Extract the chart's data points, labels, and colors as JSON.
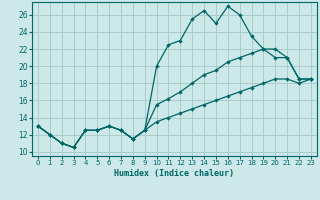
{
  "xlabel": "Humidex (Indice chaleur)",
  "bg_color": "#cce8e8",
  "grid_color": "#aacccc",
  "line_color": "#006666",
  "xlim": [
    -0.5,
    23.5
  ],
  "ylim": [
    9.5,
    27.5
  ],
  "yticks": [
    10,
    12,
    14,
    16,
    18,
    20,
    22,
    24,
    26
  ],
  "xticks": [
    0,
    1,
    2,
    3,
    4,
    5,
    6,
    7,
    8,
    9,
    10,
    11,
    12,
    13,
    14,
    15,
    16,
    17,
    18,
    19,
    20,
    21,
    22,
    23
  ],
  "line1_x": [
    0,
    1,
    2,
    3,
    4,
    5,
    6,
    7,
    8,
    9,
    10,
    11,
    12,
    13,
    14,
    15,
    16,
    17,
    18,
    19,
    20,
    21,
    22,
    23
  ],
  "line1_y": [
    13.0,
    12.0,
    11.0,
    10.5,
    12.5,
    12.5,
    13.0,
    12.5,
    11.5,
    12.5,
    20.0,
    22.5,
    23.0,
    25.5,
    26.5,
    25.0,
    27.0,
    26.0,
    23.5,
    22.0,
    21.0,
    21.0,
    18.5,
    18.5
  ],
  "line2_x": [
    0,
    1,
    2,
    3,
    4,
    5,
    6,
    7,
    8,
    9,
    10,
    11,
    12,
    13,
    14,
    15,
    16,
    17,
    18,
    19,
    20,
    21,
    22,
    23
  ],
  "line2_y": [
    13.0,
    12.0,
    11.0,
    10.5,
    12.5,
    12.5,
    13.0,
    12.5,
    11.5,
    12.5,
    15.5,
    16.2,
    17.0,
    18.0,
    19.0,
    19.5,
    20.5,
    21.0,
    21.5,
    22.0,
    22.0,
    21.0,
    18.5,
    18.5
  ],
  "line3_x": [
    0,
    1,
    2,
    3,
    4,
    5,
    6,
    7,
    8,
    9,
    10,
    11,
    12,
    13,
    14,
    15,
    16,
    17,
    18,
    19,
    20,
    21,
    22,
    23
  ],
  "line3_y": [
    13.0,
    12.0,
    11.0,
    10.5,
    12.5,
    12.5,
    13.0,
    12.5,
    11.5,
    12.5,
    13.5,
    14.0,
    14.5,
    15.0,
    15.5,
    16.0,
    16.5,
    17.0,
    17.5,
    18.0,
    18.5,
    18.5,
    18.0,
    18.5
  ]
}
